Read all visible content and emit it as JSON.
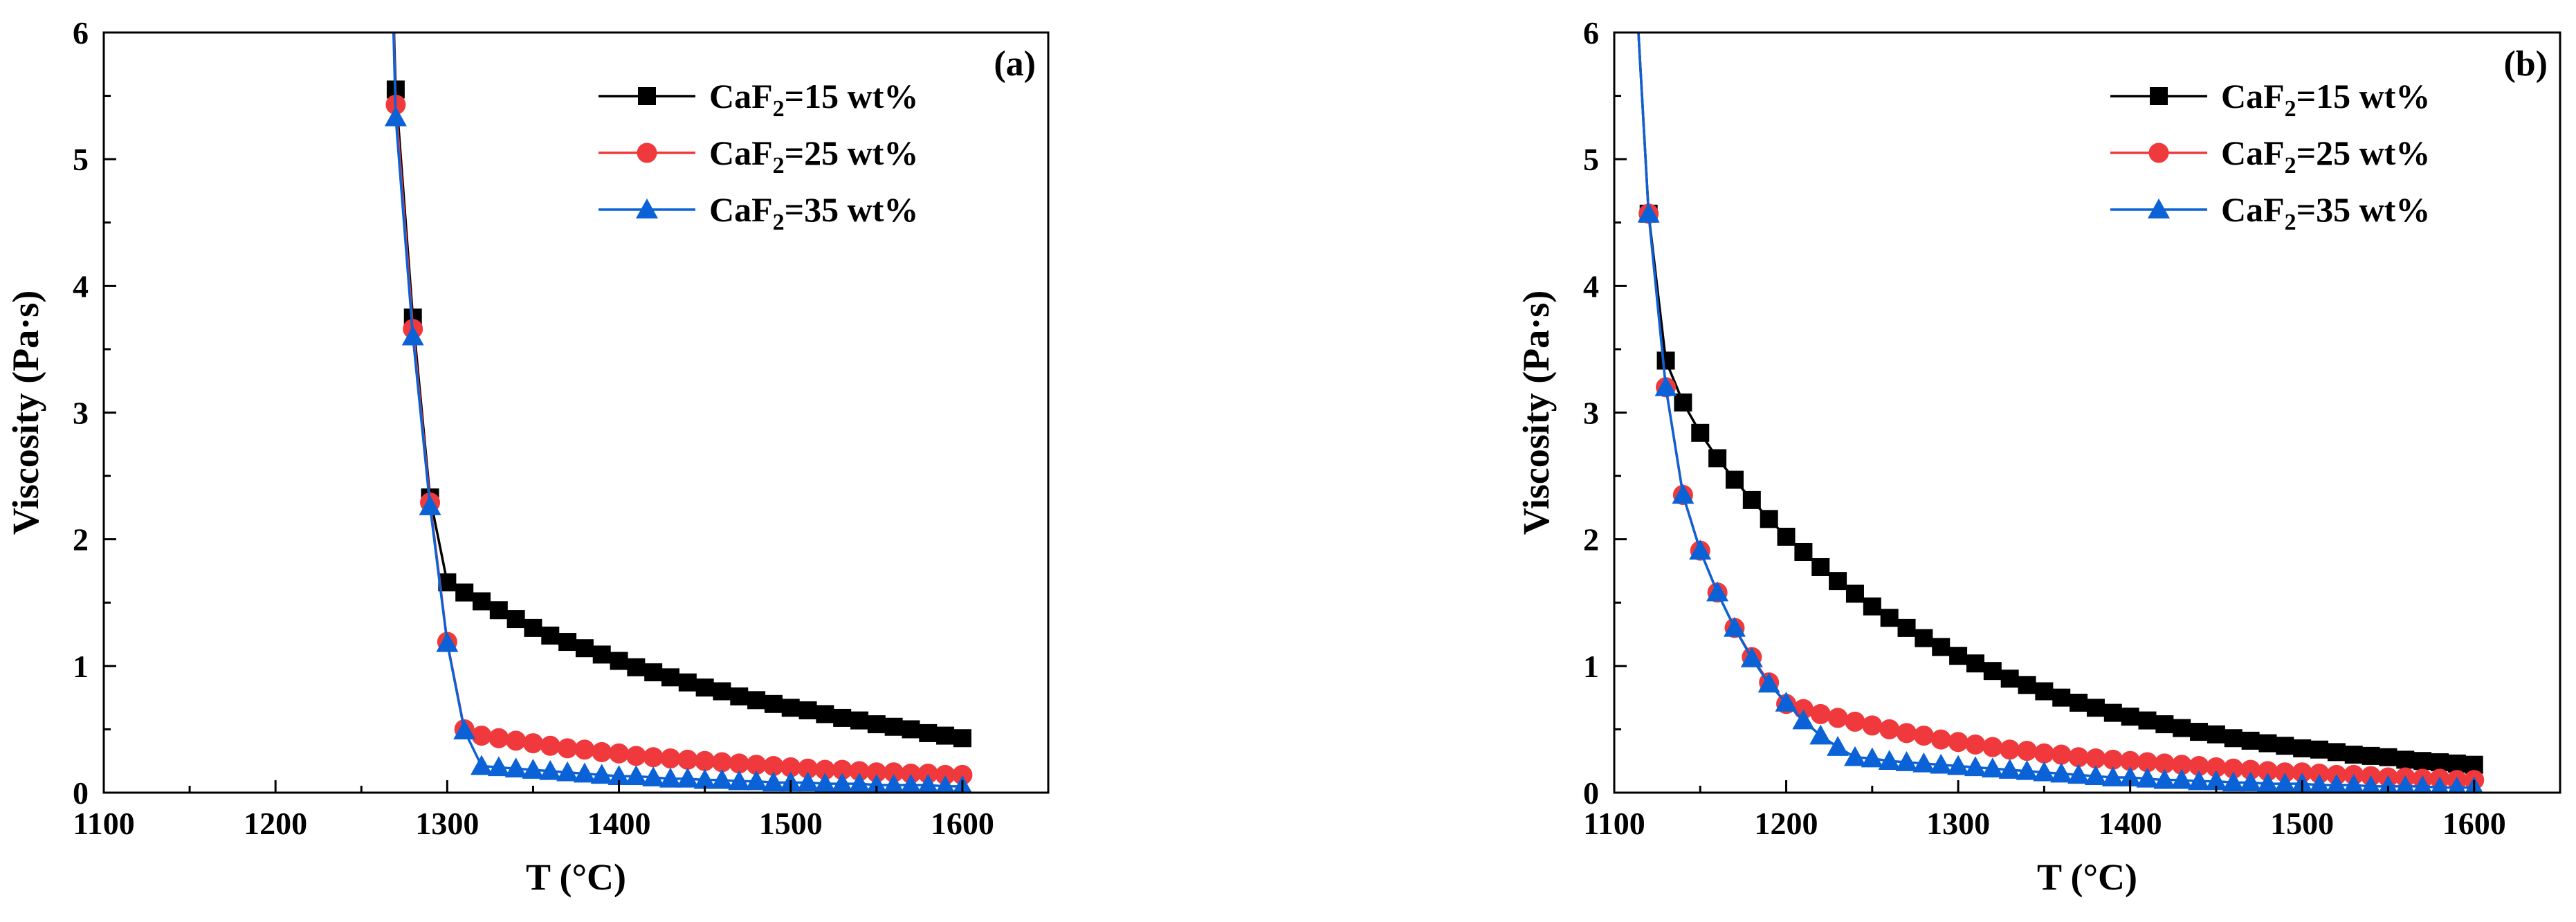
{
  "colors": {
    "black": "#000000",
    "red": "#f0393c",
    "blue": "#0a62d6"
  },
  "chart_data": [
    {
      "type": "line",
      "panel_label": "(a)",
      "xlabel": "T (°C)",
      "ylabel": "Viscosity (Pa·s)",
      "xlim": [
        1100,
        1650
      ],
      "ylim": [
        0,
        6
      ],
      "xticks": [
        "1100",
        "1200",
        "1300",
        "1400",
        "1500",
        "1600"
      ],
      "yticks": [
        "0",
        "1",
        "2",
        "3",
        "4",
        "5",
        "6"
      ],
      "legend_position": "top-right",
      "x": [
        1270,
        1280,
        1290,
        1300,
        1310,
        1320,
        1330,
        1340,
        1350,
        1360,
        1370,
        1380,
        1390,
        1400,
        1410,
        1420,
        1430,
        1440,
        1450,
        1460,
        1470,
        1480,
        1490,
        1500,
        1510,
        1520,
        1530,
        1540,
        1550,
        1560,
        1570,
        1580,
        1590,
        1600
      ],
      "series": [
        {
          "name_base": "CaF",
          "name_sub": "2",
          "name_rest": "=15 wt%",
          "marker": "square",
          "color": "#000000",
          "lead_in": [
            [
              1265,
              8.5
            ],
            [
              1267,
              6.9
            ]
          ],
          "values": [
            5.55,
            3.75,
            2.33,
            1.66,
            1.58,
            1.51,
            1.44,
            1.37,
            1.3,
            1.24,
            1.19,
            1.14,
            1.09,
            1.04,
            0.99,
            0.95,
            0.91,
            0.87,
            0.83,
            0.8,
            0.76,
            0.73,
            0.7,
            0.67,
            0.65,
            0.62,
            0.59,
            0.57,
            0.54,
            0.52,
            0.5,
            0.47,
            0.45,
            0.43
          ]
        },
        {
          "name_base": "CaF",
          "name_sub": "2",
          "name_rest": "=25 wt%",
          "marker": "circle",
          "color": "#f0393c",
          "lead_in": [
            [
              1265,
              8.5
            ],
            [
              1267,
              6.9
            ]
          ],
          "values": [
            5.43,
            3.66,
            2.29,
            1.19,
            0.5,
            0.45,
            0.43,
            0.41,
            0.39,
            0.37,
            0.35,
            0.34,
            0.32,
            0.31,
            0.29,
            0.28,
            0.27,
            0.26,
            0.25,
            0.24,
            0.23,
            0.22,
            0.21,
            0.2,
            0.19,
            0.18,
            0.18,
            0.17,
            0.16,
            0.16,
            0.15,
            0.15,
            0.14,
            0.14
          ]
        },
        {
          "name_base": "CaF",
          "name_sub": "2",
          "name_rest": "=35 wt%",
          "marker": "triangle",
          "color": "#0a62d6",
          "lead_in": [
            [
              1265,
              8.5
            ],
            [
              1267,
              6.9
            ]
          ],
          "values": [
            5.33,
            3.6,
            2.26,
            1.18,
            0.49,
            0.21,
            0.2,
            0.19,
            0.18,
            0.17,
            0.16,
            0.15,
            0.14,
            0.13,
            0.13,
            0.12,
            0.11,
            0.11,
            0.1,
            0.1,
            0.09,
            0.09,
            0.08,
            0.08,
            0.08,
            0.07,
            0.07,
            0.07,
            0.06,
            0.06,
            0.06,
            0.06,
            0.05,
            0.05
          ]
        }
      ]
    },
    {
      "type": "line",
      "panel_label": "(b)",
      "xlabel": "T (°C)",
      "ylabel": "Viscosity (Pa·s)",
      "xlim": [
        1100,
        1650
      ],
      "ylim": [
        0,
        6
      ],
      "xticks": [
        "1100",
        "1200",
        "1300",
        "1400",
        "1500",
        "1600"
      ],
      "yticks": [
        "0",
        "1",
        "2",
        "3",
        "4",
        "5",
        "6"
      ],
      "legend_position": "top-right",
      "x": [
        1120,
        1130,
        1140,
        1150,
        1160,
        1170,
        1180,
        1190,
        1200,
        1210,
        1220,
        1230,
        1240,
        1250,
        1260,
        1270,
        1280,
        1290,
        1300,
        1310,
        1320,
        1330,
        1340,
        1350,
        1360,
        1370,
        1380,
        1390,
        1400,
        1410,
        1420,
        1430,
        1440,
        1450,
        1460,
        1470,
        1480,
        1490,
        1500,
        1510,
        1520,
        1530,
        1540,
        1550,
        1560,
        1570,
        1580,
        1590,
        1600
      ],
      "series": [
        {
          "name_base": "CaF",
          "name_sub": "2",
          "name_rest": "=15 wt%",
          "marker": "square",
          "color": "#000000",
          "lead_in": [
            [
              1112,
              6.5
            ]
          ],
          "values": [
            4.57,
            3.41,
            3.08,
            2.84,
            2.64,
            2.47,
            2.31,
            2.16,
            2.02,
            1.9,
            1.78,
            1.67,
            1.57,
            1.47,
            1.38,
            1.3,
            1.22,
            1.15,
            1.08,
            1.02,
            0.96,
            0.9,
            0.85,
            0.8,
            0.75,
            0.71,
            0.67,
            0.63,
            0.6,
            0.57,
            0.54,
            0.51,
            0.48,
            0.46,
            0.43,
            0.41,
            0.39,
            0.37,
            0.35,
            0.34,
            0.32,
            0.3,
            0.29,
            0.28,
            0.26,
            0.25,
            0.24,
            0.23,
            0.22
          ]
        },
        {
          "name_base": "CaF",
          "name_sub": "2",
          "name_rest": "=25 wt%",
          "marker": "circle",
          "color": "#f0393c",
          "lead_in": [
            [
              1112,
              6.5
            ]
          ],
          "values": [
            4.57,
            3.2,
            2.35,
            1.91,
            1.58,
            1.3,
            1.07,
            0.87,
            0.7,
            0.66,
            0.62,
            0.59,
            0.56,
            0.53,
            0.5,
            0.47,
            0.45,
            0.42,
            0.4,
            0.38,
            0.36,
            0.34,
            0.33,
            0.31,
            0.3,
            0.28,
            0.27,
            0.26,
            0.25,
            0.24,
            0.23,
            0.22,
            0.21,
            0.2,
            0.19,
            0.18,
            0.17,
            0.16,
            0.16,
            0.15,
            0.14,
            0.14,
            0.13,
            0.12,
            0.12,
            0.11,
            0.11,
            0.1,
            0.1
          ]
        },
        {
          "name_base": "CaF",
          "name_sub": "2",
          "name_rest": "=35 wt%",
          "marker": "triangle",
          "color": "#0a62d6",
          "lead_in": [
            [
              1112,
              6.5
            ]
          ],
          "values": [
            4.57,
            3.2,
            2.35,
            1.91,
            1.58,
            1.3,
            1.06,
            0.86,
            0.71,
            0.57,
            0.45,
            0.36,
            0.28,
            0.27,
            0.25,
            0.24,
            0.23,
            0.22,
            0.21,
            0.2,
            0.19,
            0.18,
            0.17,
            0.16,
            0.15,
            0.14,
            0.13,
            0.12,
            0.12,
            0.11,
            0.1,
            0.1,
            0.09,
            0.09,
            0.08,
            0.08,
            0.07,
            0.07,
            0.07,
            0.06,
            0.06,
            0.06,
            0.05,
            0.05,
            0.05,
            0.05,
            0.04,
            0.04,
            0.04
          ]
        }
      ]
    }
  ]
}
